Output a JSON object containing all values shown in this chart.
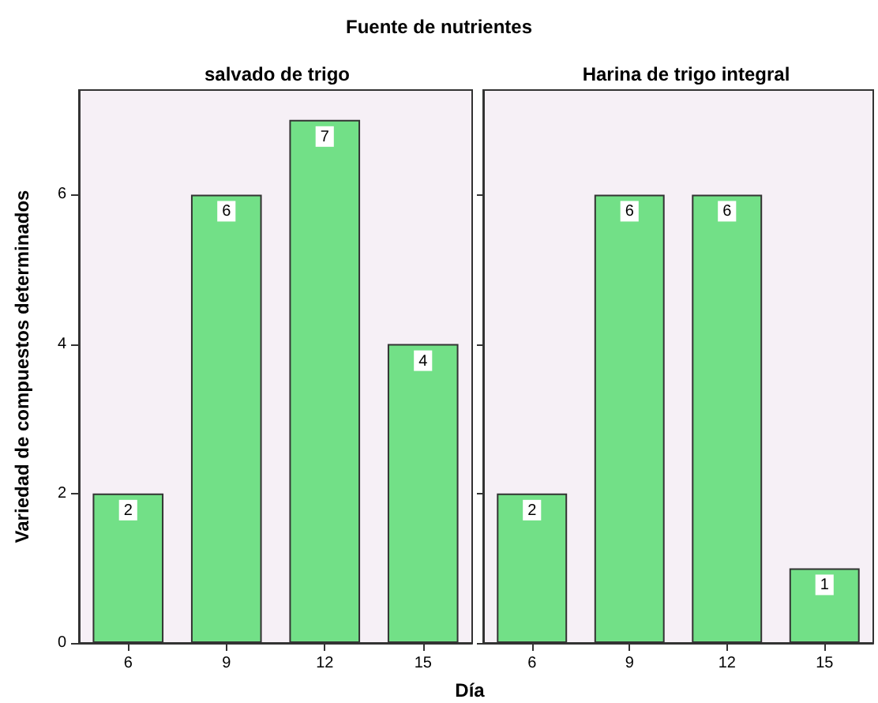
{
  "chart_data": [
    {
      "type": "bar",
      "title": "salvado de trigo",
      "annotations": [
        "Fuente de nutrientes"
      ],
      "xlabel": "Día",
      "ylabel": "Variedad de compuestos determinados",
      "categories": [
        "6",
        "9",
        "12",
        "15"
      ],
      "values": [
        2,
        6,
        7,
        4
      ],
      "color": "#72e087",
      "ylim": [
        0,
        7.4
      ],
      "yticks": [
        0,
        2,
        4,
        6
      ],
      "grid": false,
      "data_labels": true
    },
    {
      "type": "bar",
      "title": "Harina de trigo integral",
      "categories": [
        "6",
        "9",
        "12",
        "15"
      ],
      "values": [
        2,
        6,
        6,
        1
      ],
      "color": "#72e087",
      "ylim": [
        0,
        7.4
      ],
      "yticks": [
        0,
        2,
        4,
        6
      ],
      "grid": false,
      "data_labels": true,
      "tick_labels": "x"
    }
  ]
}
